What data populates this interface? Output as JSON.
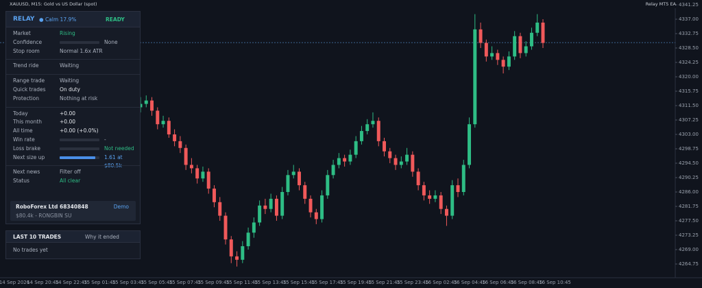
{
  "topbar": {
    "symbol": "XAUUSD, M15: Gold vs US Dollar (spot)",
    "expert": "Relay MT5 EA"
  },
  "chart_data": {
    "type": "candlestick",
    "colors": {
      "up": "#2ebd85",
      "down": "#f0595a"
    },
    "ylim": [
      4260.7,
      4342.67
    ],
    "yticks": [
      4341.25,
      {
        "value": 4337,
        "label": "4337.00"
      },
      4332.75,
      {
        "value": 4328.5,
        "label": "4328.50"
      },
      4324.25,
      {
        "value": 4320,
        "label": "4320.00"
      },
      4315.75,
      {
        "value": 4311.5,
        "label": "4311.50"
      },
      4307.25,
      {
        "value": 4303,
        "label": "4303.00"
      },
      4298.75,
      {
        "value": 4294.5,
        "label": "4294.50"
      },
      4290.25,
      {
        "value": 4286,
        "label": "4286.00"
      },
      4281.75,
      {
        "value": 4277.5,
        "label": "4277.50"
      },
      4273.25,
      {
        "value": 4269,
        "label": "4269.00"
      },
      4264.75
    ],
    "current_price": 4330.1,
    "x_labels": [
      "14 Sep 2026",
      "14 Sep 20:45",
      "14 Sep 22:45",
      "15 Sep 01:45",
      "15 Sep 03:45",
      "15 Sep 05:45",
      "15 Sep 07:45",
      "15 Sep 09:45",
      "15 Sep 11:45",
      "15 Sep 13:45",
      "15 Sep 15:45",
      "15 Sep 17:45",
      "15 Sep 19:45",
      "15 Sep 21:45",
      "15 Sep 23:45",
      "16 Sep 02:45",
      "16 Sep 04:45",
      "16 Sep 06:45",
      "16 Sep 08:45",
      "16 Sep 10:45"
    ],
    "ohlc": [
      [
        4311,
        4314,
        4309.5,
        4312
      ],
      [
        4312,
        4314.5,
        4311,
        4313
      ],
      [
        4313,
        4314,
        4308.5,
        4310
      ],
      [
        4310,
        4311,
        4304.5,
        4306
      ],
      [
        4306,
        4308.5,
        4305,
        4307
      ],
      [
        4307,
        4308,
        4302,
        4303
      ],
      [
        4303,
        4304.5,
        4299.5,
        4301
      ],
      [
        4301,
        4302.5,
        4297.5,
        4299
      ],
      [
        4299,
        4300,
        4292.5,
        4294
      ],
      [
        4294,
        4296,
        4291.5,
        4293
      ],
      [
        4293,
        4294,
        4288.5,
        4290
      ],
      [
        4290,
        4293.5,
        4289,
        4292
      ],
      [
        4292,
        4293,
        4285.5,
        4287
      ],
      [
        4287,
        4288,
        4281.5,
        4283
      ],
      [
        4283,
        4284.5,
        4277.5,
        4279
      ],
      [
        4279,
        4280,
        4270.5,
        4272
      ],
      [
        4272,
        4273,
        4265,
        4267
      ],
      [
        4267,
        4268.5,
        4264,
        4266
      ],
      [
        4266,
        4271.5,
        4265,
        4270
      ],
      [
        4270,
        4275.5,
        4269,
        4274
      ],
      [
        4274,
        4278.5,
        4272.5,
        4277
      ],
      [
        4277,
        4283.5,
        4276,
        4282
      ],
      [
        4282,
        4284,
        4279.5,
        4281
      ],
      [
        4281,
        4285.5,
        4280,
        4284
      ],
      [
        4284,
        4285,
        4277.5,
        4279
      ],
      [
        4279,
        4287.5,
        4278,
        4286
      ],
      [
        4286,
        4292.5,
        4285,
        4291
      ],
      [
        4291,
        4294,
        4290,
        4292
      ],
      [
        4292,
        4293,
        4286.5,
        4288
      ],
      [
        4288,
        4289,
        4282.5,
        4284
      ],
      [
        4284,
        4285,
        4278.5,
        4280
      ],
      [
        4280,
        4281,
        4276.5,
        4278
      ],
      [
        4278,
        4286.5,
        4277,
        4285
      ],
      [
        4285,
        4292.5,
        4284,
        4291
      ],
      [
        4291,
        4295.5,
        4290,
        4294
      ],
      [
        4294,
        4297.5,
        4293,
        4296
      ],
      [
        4296,
        4297,
        4293.5,
        4295
      ],
      [
        4295,
        4298.5,
        4294,
        4297
      ],
      [
        4297,
        4302.5,
        4296,
        4301
      ],
      [
        4301,
        4305.5,
        4300,
        4304
      ],
      [
        4304,
        4307.5,
        4303,
        4306
      ],
      [
        4306,
        4309.5,
        4305,
        4307
      ],
      [
        4307,
        4308,
        4299.5,
        4301
      ],
      [
        4301,
        4302,
        4296.5,
        4298
      ],
      [
        4298,
        4299,
        4294.5,
        4296
      ],
      [
        4296,
        4297,
        4292.5,
        4294
      ],
      [
        4294,
        4296.5,
        4293,
        4295
      ],
      [
        4295,
        4299,
        4294,
        4297
      ],
      [
        4297,
        4298,
        4290.5,
        4292
      ],
      [
        4292,
        4293,
        4286.5,
        4288
      ],
      [
        4288,
        4289,
        4283.5,
        4285
      ],
      [
        4285,
        4286.5,
        4282.5,
        4284
      ],
      [
        4284,
        4286.5,
        4283,
        4285
      ],
      [
        4285,
        4286,
        4279.5,
        4281
      ],
      [
        4281,
        4282,
        4276,
        4279
      ],
      [
        4279,
        4289.5,
        4278,
        4288
      ],
      [
        4288,
        4290,
        4284.5,
        4286
      ],
      [
        4286,
        4295.5,
        4285,
        4294
      ],
      [
        4294,
        4308,
        4293,
        4306
      ],
      [
        4306,
        4338.5,
        4305,
        4334
      ],
      [
        4334,
        4336,
        4328.5,
        4330
      ],
      [
        4330,
        4331,
        4324.5,
        4326
      ],
      [
        4326,
        4329,
        4325,
        4327
      ],
      [
        4327,
        4328,
        4323.5,
        4325
      ],
      [
        4325,
        4326,
        4321,
        4323
      ],
      [
        4323,
        4327.5,
        4322,
        4326
      ],
      [
        4326,
        4333.5,
        4325,
        4332
      ],
      [
        4332,
        4333,
        4325.5,
        4327
      ],
      [
        4327,
        4330.5,
        4326,
        4329
      ],
      [
        4329,
        4334.5,
        4328,
        4333
      ],
      [
        4333,
        4338.5,
        4332,
        4336
      ],
      [
        4336,
        4337,
        4328.5,
        4330
      ]
    ]
  },
  "panel": {
    "title": "RELAY",
    "regime": "Calm 17.9%",
    "state": "READY",
    "rows": [
      {
        "label": "Market",
        "value": "Rising",
        "tone": "green"
      },
      {
        "label": "Confidence",
        "value": "None",
        "progress": 0
      },
      {
        "label": "Stop room",
        "value": "Normal  1.6x ATR"
      },
      {
        "label": "Trend ride",
        "value": "Waiting",
        "gap": true
      },
      {
        "label": "Range trade",
        "value": "Waiting",
        "gap": true
      },
      {
        "label": "Quick trades",
        "value": "On duty",
        "tone": "white"
      },
      {
        "label": "Protection",
        "value": "Nothing at risk"
      },
      {
        "label": "Today",
        "value": "+0.00",
        "tone": "white",
        "gap": true
      },
      {
        "label": "This month",
        "value": "+0.00",
        "tone": "white"
      },
      {
        "label": "All time",
        "value": "+0.00  (+0.0%)",
        "tone": "white"
      },
      {
        "label": "Win rate",
        "value": "-",
        "progress": 0
      },
      {
        "label": "Loss brake",
        "value": "Not needed",
        "progress": 0,
        "tone": "green"
      },
      {
        "label": "Next size up",
        "value": "1.61 at $80.5k",
        "progress": 90,
        "tone": "blue"
      },
      {
        "label": "Next news",
        "value": "Filter off",
        "gap": true
      },
      {
        "label": "Status",
        "value": "All clear",
        "tone": "green"
      }
    ],
    "account": {
      "broker": "RoboForex Ltd 68340848",
      "mode": "Demo",
      "detail": "$80.4k  -  RONGBIN SU"
    }
  },
  "trades": {
    "title": "LAST 10 TRADES",
    "column": "Why it ended",
    "empty": "No trades yet"
  }
}
